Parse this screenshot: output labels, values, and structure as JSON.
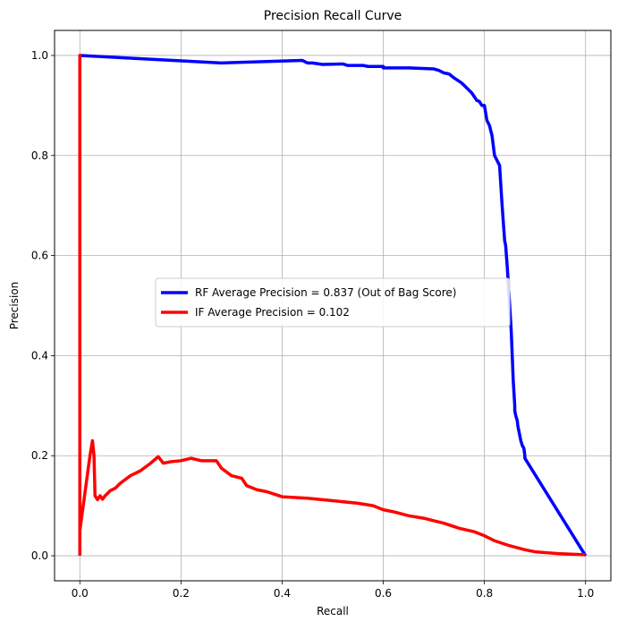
{
  "chart_data": {
    "type": "line",
    "title": "Precision Recall Curve",
    "xlabel": "Recall",
    "ylabel": "Precision",
    "xlim": [
      -0.05,
      1.05
    ],
    "ylim": [
      -0.05,
      1.05
    ],
    "xticks": [
      0.0,
      0.2,
      0.4,
      0.6,
      0.8,
      1.0
    ],
    "yticks": [
      0.0,
      0.2,
      0.4,
      0.6,
      0.8,
      1.0
    ],
    "xtick_labels": [
      "0.0",
      "0.2",
      "0.4",
      "0.6",
      "0.8",
      "1.0"
    ],
    "ytick_labels": [
      "0.0",
      "0.2",
      "0.4",
      "0.6",
      "0.8",
      "1.0"
    ],
    "grid": true,
    "legend_position": "center-right",
    "series": [
      {
        "name": "RF  Average Precision = 0.837 (Out of Bag Score)",
        "color": "#0000ff",
        "x": [
          0.0,
          0.0,
          0.28,
          0.44,
          0.45,
          0.46,
          0.48,
          0.52,
          0.53,
          0.56,
          0.57,
          0.6,
          0.6,
          0.64,
          0.65,
          0.7,
          0.71,
          0.72,
          0.73,
          0.74,
          0.755,
          0.765,
          0.775,
          0.785,
          0.79,
          0.795,
          0.8,
          0.805,
          0.81,
          0.815,
          0.82,
          0.825,
          0.83,
          0.835,
          0.84,
          0.842,
          0.845,
          0.85,
          0.853,
          0.855,
          0.857,
          0.86,
          0.86,
          0.862,
          0.865,
          0.866,
          0.868,
          0.87,
          0.872,
          0.875,
          0.878,
          0.88,
          0.88,
          1.0
        ],
        "y": [
          0.0,
          1.0,
          0.985,
          0.99,
          0.985,
          0.985,
          0.982,
          0.983,
          0.98,
          0.98,
          0.978,
          0.978,
          0.975,
          0.975,
          0.975,
          0.973,
          0.97,
          0.965,
          0.963,
          0.955,
          0.945,
          0.935,
          0.925,
          0.91,
          0.908,
          0.9,
          0.9,
          0.87,
          0.86,
          0.84,
          0.8,
          0.79,
          0.78,
          0.7,
          0.63,
          0.62,
          0.58,
          0.5,
          0.45,
          0.4,
          0.35,
          0.3,
          0.29,
          0.28,
          0.27,
          0.26,
          0.25,
          0.24,
          0.23,
          0.22,
          0.215,
          0.2,
          0.195,
          0.0
        ]
      },
      {
        "name": "IF  Average Precision = 0.102",
        "color": "#ff0000",
        "x": [
          0.0,
          0.0,
          0.0,
          0.02,
          0.025,
          0.028,
          0.03,
          0.035,
          0.04,
          0.045,
          0.05,
          0.06,
          0.07,
          0.08,
          0.1,
          0.12,
          0.14,
          0.155,
          0.165,
          0.18,
          0.2,
          0.22,
          0.24,
          0.25,
          0.27,
          0.28,
          0.3,
          0.32,
          0.33,
          0.35,
          0.37,
          0.4,
          0.45,
          0.5,
          0.55,
          0.58,
          0.6,
          0.62,
          0.65,
          0.68,
          0.7,
          0.72,
          0.75,
          0.78,
          0.8,
          0.82,
          0.85,
          0.88,
          0.9,
          0.95,
          1.0
        ],
        "y": [
          0.0,
          1.0,
          0.05,
          0.2,
          0.23,
          0.2,
          0.12,
          0.112,
          0.12,
          0.113,
          0.12,
          0.13,
          0.135,
          0.145,
          0.16,
          0.17,
          0.185,
          0.198,
          0.185,
          0.188,
          0.19,
          0.195,
          0.19,
          0.19,
          0.19,
          0.175,
          0.16,
          0.155,
          0.14,
          0.132,
          0.128,
          0.118,
          0.115,
          0.11,
          0.105,
          0.1,
          0.092,
          0.088,
          0.08,
          0.075,
          0.07,
          0.065,
          0.055,
          0.048,
          0.04,
          0.03,
          0.02,
          0.012,
          0.008,
          0.004,
          0.002
        ]
      }
    ]
  }
}
